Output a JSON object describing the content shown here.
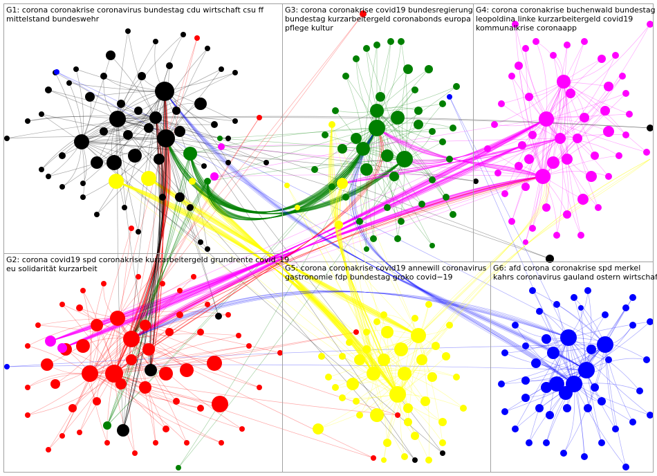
{
  "groups": [
    {
      "id": "G1",
      "color": "#000000",
      "label_lines": [
        "G1: corona coronakrise coronavirus bundestag cdu wirtschaft csu ff",
        "mittelstand bundeswehr"
      ]
    },
    {
      "id": "G2",
      "color": "#ff0000",
      "label_lines": [
        "G2: corona covid19 spd coronakrise kurzarbeitergeld grundrente covid_19",
        "eu solidarität kurzarbeit"
      ]
    },
    {
      "id": "G3",
      "color": "#008000",
      "label_lines": [
        "G3: corona coronakrise covid19 bundesregierung",
        "bundestag kurzarbeitergeld coronabonds europa",
        "pflege kultur"
      ]
    },
    {
      "id": "G4",
      "color": "#ff00ff",
      "label_lines": [
        "G4: corona coronakrise buchenwald bundestag",
        "leopoldina linke kurzarbeitergeld covid19",
        "kommunalkrise coronaapp"
      ]
    },
    {
      "id": "G5",
      "color": "#ffff00",
      "label_lines": [
        "G5: corona coronakrise covid19 annewill coronavirus",
        "gastronomie fdp bundestag groko covid−19"
      ]
    },
    {
      "id": "G6",
      "color": "#0000ff",
      "label_lines": [
        "G6: afd corona coronakrise spd merkel",
        "kahrs coronavirus gauland ostern wirtschaft"
      ]
    }
  ]
}
